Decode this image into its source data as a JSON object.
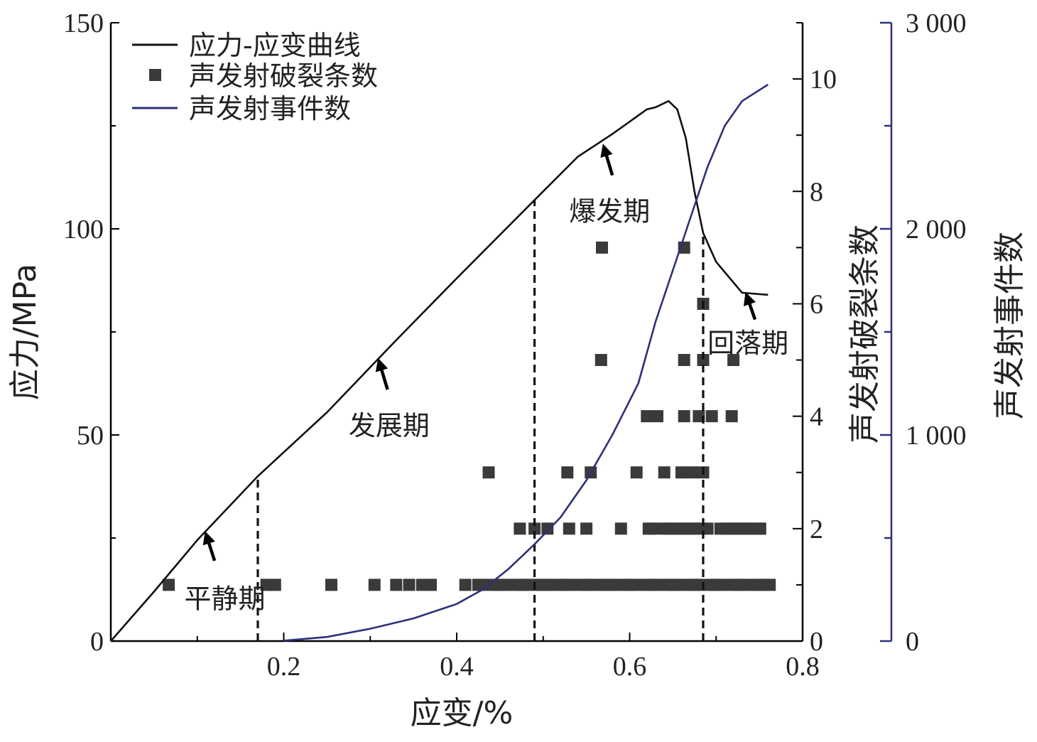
{
  "chart_data": {
    "type": "line",
    "xlabel": "应变/%",
    "ylabel_left": "应力/MPa",
    "ylabel_right_inner": "声发射破裂条数",
    "ylabel_right_outer": "声发射事件数",
    "xlim": [
      0,
      0.8
    ],
    "ylim_left": [
      0,
      150
    ],
    "ylim_right_inner": [
      0,
      11
    ],
    "ylim_right_outer": [
      0,
      3000
    ],
    "x_ticks": [
      "0.2",
      "0.4",
      "0.6",
      "0.8"
    ],
    "y_left_ticks": [
      "0",
      "50",
      "100",
      "150"
    ],
    "y_right_inner_ticks": [
      "0",
      "2",
      "4",
      "6",
      "8",
      "10"
    ],
    "y_right_outer_ticks": [
      "0",
      "1 000",
      "2 000",
      "3 000"
    ],
    "legend": {
      "placement": "top-left",
      "items": [
        "应力-应变曲线",
        "声发射破裂条数",
        "声发射事件数"
      ]
    },
    "colors": {
      "stress": "#111111",
      "events": "#2e3178",
      "cracks": "#3a3a3a"
    },
    "series": [
      {
        "name": "应力-应变曲线",
        "axis": "left",
        "points": [
          [
            0,
            0
          ],
          [
            0.05,
            12
          ],
          [
            0.1,
            24.5
          ],
          [
            0.17,
            40
          ],
          [
            0.25,
            55.5
          ],
          [
            0.33,
            73
          ],
          [
            0.4,
            88
          ],
          [
            0.49,
            107
          ],
          [
            0.54,
            117.5
          ],
          [
            0.58,
            123
          ],
          [
            0.62,
            129
          ],
          [
            0.63,
            129.5
          ],
          [
            0.645,
            131
          ],
          [
            0.655,
            129
          ],
          [
            0.665,
            122
          ],
          [
            0.675,
            109
          ],
          [
            0.685,
            99
          ],
          [
            0.7,
            92
          ],
          [
            0.72,
            87
          ],
          [
            0.73,
            84.5
          ],
          [
            0.76,
            84
          ]
        ]
      },
      {
        "name": "声发射事件数",
        "axis": "right_outer",
        "points": [
          [
            0.2,
            2
          ],
          [
            0.25,
            20
          ],
          [
            0.3,
            60
          ],
          [
            0.35,
            110
          ],
          [
            0.4,
            180
          ],
          [
            0.43,
            250
          ],
          [
            0.46,
            350
          ],
          [
            0.49,
            470
          ],
          [
            0.52,
            600
          ],
          [
            0.55,
            780
          ],
          [
            0.58,
            1000
          ],
          [
            0.61,
            1250
          ],
          [
            0.63,
            1550
          ],
          [
            0.65,
            1800
          ],
          [
            0.67,
            2050
          ],
          [
            0.69,
            2300
          ],
          [
            0.71,
            2500
          ],
          [
            0.73,
            2620
          ],
          [
            0.76,
            2700
          ]
        ]
      },
      {
        "name": "声发射破裂条数",
        "axis": "right_inner",
        "points": [
          [
            0.067,
            1
          ],
          [
            0.18,
            1
          ],
          [
            0.19,
            1
          ],
          [
            0.255,
            1
          ],
          [
            0.305,
            1
          ],
          [
            0.33,
            1
          ],
          [
            0.345,
            1
          ],
          [
            0.36,
            1
          ],
          [
            0.37,
            1
          ],
          [
            0.41,
            1
          ],
          [
            0.425,
            1
          ],
          [
            0.45,
            1
          ],
          [
            0.475,
            1
          ],
          [
            0.5,
            1
          ],
          [
            0.525,
            1
          ],
          [
            0.55,
            1
          ],
          [
            0.575,
            1
          ],
          [
            0.6,
            1
          ],
          [
            0.625,
            1
          ],
          [
            0.65,
            1
          ],
          [
            0.675,
            1
          ],
          [
            0.7,
            1
          ],
          [
            0.725,
            1
          ],
          [
            0.75,
            1
          ],
          [
            0.762,
            1
          ],
          [
            0.473,
            2
          ],
          [
            0.49,
            2
          ],
          [
            0.505,
            2
          ],
          [
            0.53,
            2
          ],
          [
            0.55,
            2
          ],
          [
            0.59,
            2
          ],
          [
            0.622,
            2
          ],
          [
            0.645,
            2
          ],
          [
            0.66,
            2
          ],
          [
            0.675,
            2
          ],
          [
            0.69,
            2
          ],
          [
            0.705,
            2
          ],
          [
            0.72,
            2
          ],
          [
            0.735,
            2
          ],
          [
            0.75,
            2
          ],
          [
            0.437,
            3
          ],
          [
            0.528,
            3
          ],
          [
            0.555,
            3
          ],
          [
            0.608,
            3
          ],
          [
            0.64,
            3
          ],
          [
            0.66,
            3
          ],
          [
            0.672,
            3
          ],
          [
            0.685,
            3
          ],
          [
            0.62,
            4
          ],
          [
            0.632,
            4
          ],
          [
            0.663,
            4
          ],
          [
            0.68,
            4
          ],
          [
            0.695,
            4
          ],
          [
            0.718,
            4
          ],
          [
            0.567,
            5
          ],
          [
            0.663,
            5
          ],
          [
            0.685,
            5
          ],
          [
            0.72,
            5
          ],
          [
            0.685,
            6
          ],
          [
            0.568,
            7
          ],
          [
            0.663,
            7
          ]
        ]
      }
    ],
    "phase_boundaries": [
      {
        "x": 0.17,
        "top": 40
      },
      {
        "x": 0.49,
        "top": 107
      },
      {
        "x": 0.685,
        "top": 99
      }
    ],
    "annotations": [
      {
        "text": "平静期",
        "x": 0.085,
        "y": 8,
        "arrow_to": [
          0.12,
          19.5
        ],
        "arrow_from": [
          0.11,
          26
        ]
      },
      {
        "text": "发展期",
        "x": 0.275,
        "y": 50,
        "arrow_to": [
          0.32,
          61
        ],
        "arrow_from": [
          0.31,
          68
        ]
      },
      {
        "text": "爆发期",
        "x": 0.53,
        "y": 102,
        "arrow_to": [
          0.58,
          113
        ],
        "arrow_from": [
          0.57,
          120
        ]
      },
      {
        "text": "回落期",
        "x": 0.69,
        "y": 70,
        "arrow_to": [
          0.745,
          78
        ],
        "arrow_from": [
          0.735,
          84
        ]
      }
    ]
  }
}
